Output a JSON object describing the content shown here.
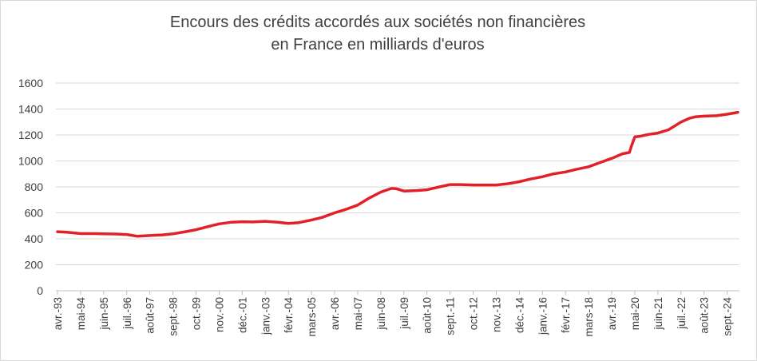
{
  "chart_data": {
    "type": "line",
    "title_line1": "Encours des crédits accordés aux sociétés non financières",
    "title_line2": "en France en milliards d'euros",
    "xlabel": "",
    "ylabel": "",
    "ylim": [
      0,
      1600
    ],
    "yticks": [
      0,
      200,
      400,
      600,
      800,
      1000,
      1200,
      1400,
      1600
    ],
    "grid": "horizontal",
    "legend": "none",
    "line_color": "#e3202a",
    "x_start": "1993-04",
    "x_end": "2025-03",
    "xtick_labels": [
      {
        "label": "avr.-93",
        "date": "1993-04"
      },
      {
        "label": "mai-94",
        "date": "1994-05"
      },
      {
        "label": "juin-95",
        "date": "1995-06"
      },
      {
        "label": "juil.-96",
        "date": "1996-07"
      },
      {
        "label": "août-97",
        "date": "1997-08"
      },
      {
        "label": "sept.-98",
        "date": "1998-09"
      },
      {
        "label": "oct.-99",
        "date": "1999-10"
      },
      {
        "label": "nov.-00",
        "date": "2000-11"
      },
      {
        "label": "déc.-01",
        "date": "2001-12"
      },
      {
        "label": "janv.-03",
        "date": "2003-01"
      },
      {
        "label": "févr.-04",
        "date": "2004-02"
      },
      {
        "label": "mars-05",
        "date": "2005-03"
      },
      {
        "label": "avr.-06",
        "date": "2006-04"
      },
      {
        "label": "mai-07",
        "date": "2007-05"
      },
      {
        "label": "juin-08",
        "date": "2008-06"
      },
      {
        "label": "juil.-09",
        "date": "2009-07"
      },
      {
        "label": "août-10",
        "date": "2010-08"
      },
      {
        "label": "sept.-11",
        "date": "2011-09"
      },
      {
        "label": "oct.-12",
        "date": "2012-10"
      },
      {
        "label": "nov.-13",
        "date": "2013-11"
      },
      {
        "label": "déc.-14",
        "date": "2014-12"
      },
      {
        "label": "janv.-16",
        "date": "2016-01"
      },
      {
        "label": "févr.-17",
        "date": "2017-02"
      },
      {
        "label": "mars-18",
        "date": "2018-03"
      },
      {
        "label": "avr.-19",
        "date": "2019-04"
      },
      {
        "label": "mai-20",
        "date": "2020-05"
      },
      {
        "label": "juin-21",
        "date": "2021-06"
      },
      {
        "label": "juil.-22",
        "date": "2022-07"
      },
      {
        "label": "août-23",
        "date": "2023-08"
      },
      {
        "label": "sept.-24",
        "date": "2024-09"
      }
    ],
    "series": [
      {
        "points": [
          [
            "1993-04",
            455
          ],
          [
            "1993-10",
            450
          ],
          [
            "1994-05",
            440
          ],
          [
            "1995-01",
            440
          ],
          [
            "1995-06",
            438
          ],
          [
            "1996-01",
            437
          ],
          [
            "1996-07",
            433
          ],
          [
            "1997-01",
            420
          ],
          [
            "1997-08",
            425
          ],
          [
            "1998-03",
            430
          ],
          [
            "1998-09",
            438
          ],
          [
            "1999-04",
            455
          ],
          [
            "1999-10",
            470
          ],
          [
            "2000-05",
            495
          ],
          [
            "2000-11",
            515
          ],
          [
            "2001-06",
            528
          ],
          [
            "2001-12",
            532
          ],
          [
            "2002-06",
            530
          ],
          [
            "2003-01",
            535
          ],
          [
            "2003-08",
            528
          ],
          [
            "2004-02",
            518
          ],
          [
            "2004-08",
            525
          ],
          [
            "2005-03",
            545
          ],
          [
            "2005-09",
            565
          ],
          [
            "2006-04",
            600
          ],
          [
            "2006-10",
            625
          ],
          [
            "2007-05",
            660
          ],
          [
            "2007-11",
            710
          ],
          [
            "2008-06",
            760
          ],
          [
            "2008-12",
            788
          ],
          [
            "2009-03",
            785
          ],
          [
            "2009-07",
            768
          ],
          [
            "2010-02",
            772
          ],
          [
            "2010-08",
            778
          ],
          [
            "2011-03",
            800
          ],
          [
            "2011-09",
            818
          ],
          [
            "2012-03",
            818
          ],
          [
            "2012-10",
            815
          ],
          [
            "2013-05",
            815
          ],
          [
            "2013-11",
            815
          ],
          [
            "2014-06",
            825
          ],
          [
            "2014-12",
            840
          ],
          [
            "2015-06",
            860
          ],
          [
            "2016-01",
            878
          ],
          [
            "2016-07",
            900
          ],
          [
            "2017-02",
            915
          ],
          [
            "2017-08",
            935
          ],
          [
            "2018-03",
            955
          ],
          [
            "2018-09",
            985
          ],
          [
            "2019-04",
            1020
          ],
          [
            "2019-10",
            1055
          ],
          [
            "2020-02",
            1065
          ],
          [
            "2020-03",
            1110
          ],
          [
            "2020-05",
            1185
          ],
          [
            "2020-08",
            1190
          ],
          [
            "2021-01",
            1205
          ],
          [
            "2021-06",
            1215
          ],
          [
            "2021-12",
            1240
          ],
          [
            "2022-07",
            1300
          ],
          [
            "2022-12",
            1330
          ],
          [
            "2023-03",
            1340
          ],
          [
            "2023-08",
            1345
          ],
          [
            "2024-03",
            1348
          ],
          [
            "2024-09",
            1360
          ],
          [
            "2025-03",
            1375
          ]
        ]
      }
    ]
  }
}
